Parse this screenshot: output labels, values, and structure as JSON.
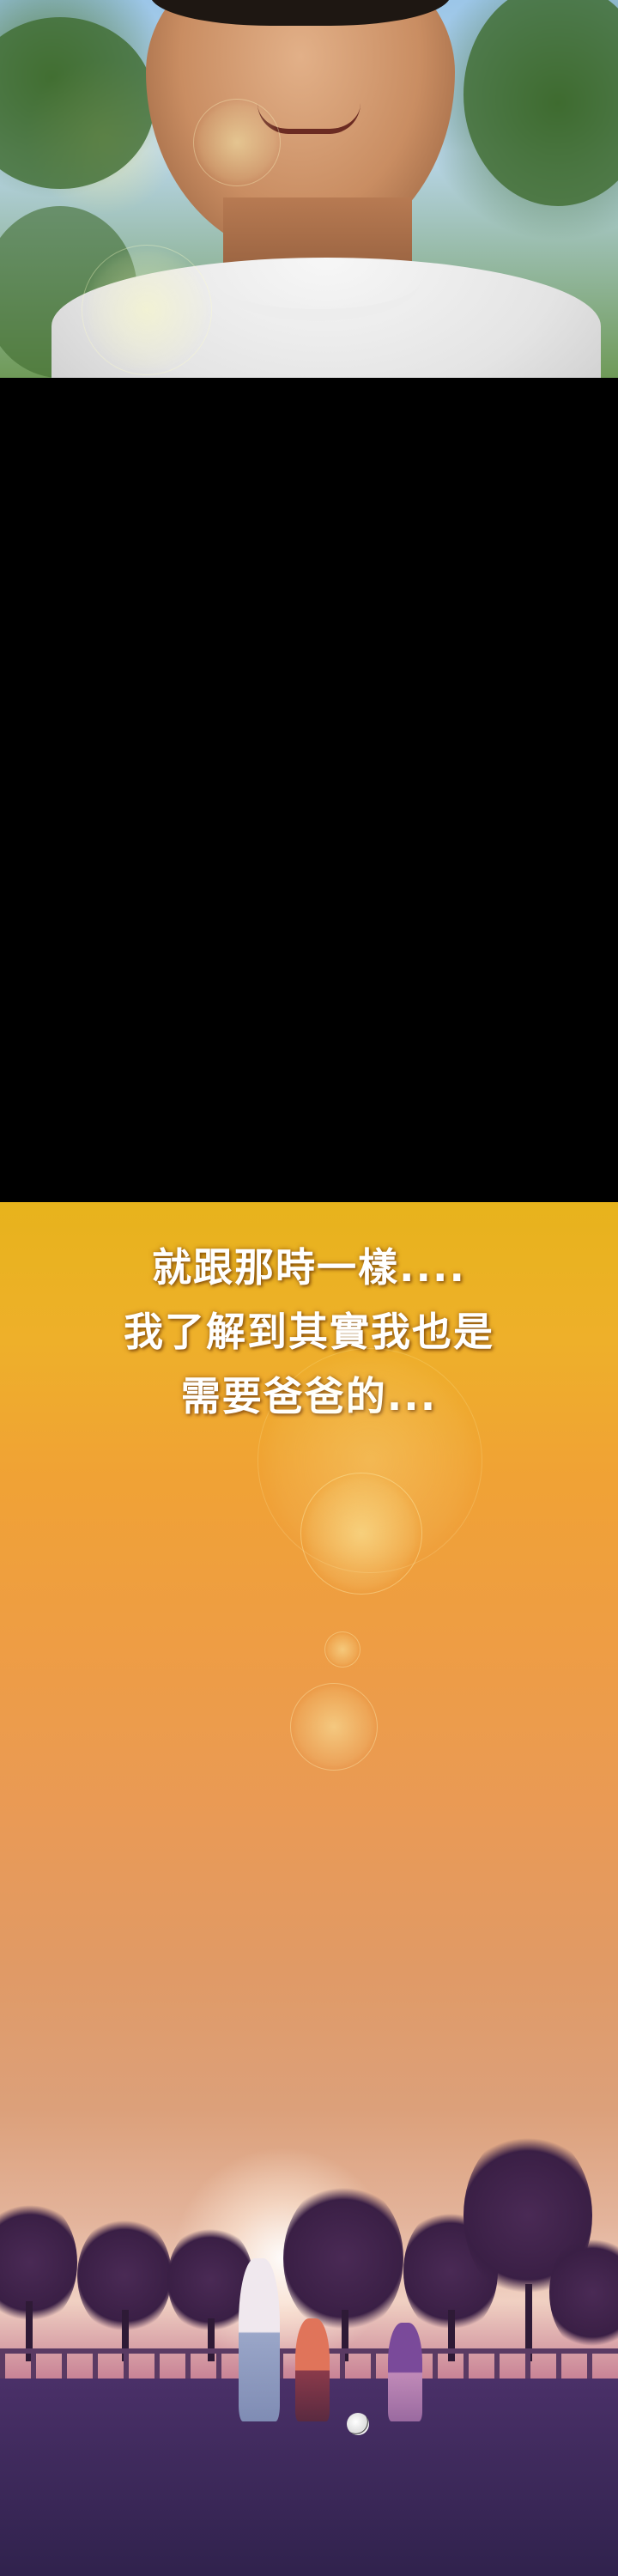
{
  "comic": {
    "caption_lines": [
      "就跟那時一樣....",
      "我了解到其實我也是",
      "需要爸爸的..."
    ]
  }
}
